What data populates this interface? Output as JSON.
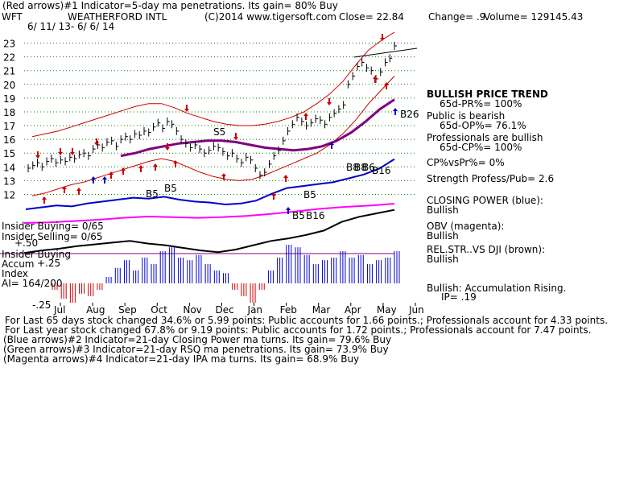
{
  "header": {
    "arrow_line": "(Red arrows)#1 Indicator=5-day ma penetrations. Its gain= 80% Buy",
    "ticker": "WFT",
    "company": "WEATHERFORD INTL",
    "copyright": "(C)2014 www.tigersoft.com",
    "close": "Close=  22.84",
    "change": "Change= .9",
    "volume": "Volume= 129145.43",
    "date_range": "6/ 11/ 13- 6/ 6/ 14"
  },
  "side_panel": {
    "trend_title": "BULLISH PRICE TREND",
    "pr": "65d-PR%= 100%",
    "public_label": "Public is bearish",
    "op": "65d-OP%= 76.1%",
    "pros_label": "Professionals are bullish",
    "cp": "65d-CP%= 100%",
    "cp_vs_pr": "CP%vsPr%=  0%",
    "strength": "Strength Profess/Pub= 2.6",
    "closing_power_label": "CLOSING POWER (blue):",
    "closing_power_value": "Bullish",
    "obv_label": "OBV (magenta):",
    "obv_value": "Bullish",
    "relstr_label": "REL.STR..VS DJI (brown):",
    "relstr_value": "Bullish",
    "accum_note": "Bullish: Accumulation Rising.",
    "ip": "IP=  .19"
  },
  "left_labels": {
    "insider_buying_1": "Insider Buying= 0/65",
    "insider_selling": "Insider Selling= 0/65",
    "insider_buying_2": "Insider Buying",
    "minus_50": "+.50",
    "accum": "Accum",
    "plus_25": "+.25",
    "index": "Index",
    "ai": "AI= 164/200",
    "minus_25": "-.25"
  },
  "chart_annotations": [
    {
      "text": "S5"
    },
    {
      "text": "B5"
    },
    {
      "text": "B5"
    },
    {
      "text": "B5"
    },
    {
      "text": "B5"
    },
    {
      "text": "B16"
    },
    {
      "text": "B26"
    },
    {
      "text": "B8"
    },
    {
      "text": "B8"
    },
    {
      "text": "B6"
    },
    {
      "text": "B16"
    }
  ],
  "footer": {
    "line1": "For Last 65 days stock changed  34.6% or  5.99 points:  Public accounts for  1.66 points.;  Professionals account for  4.33 points.",
    "line2": "For Last year stock changed  67.8% or  9.19 points:  Public accounts for  1.72 points.;  Professionals account for  7.47 points.",
    "line3": "(Blue arrows)#2 Indicator=21-day Closing Power ma turns. Its gain= 79.6% Buy",
    "line4": "(Green arrows)#3 Indicator=21-day RSQ ma penetrations. Its gain= 73.9% Buy",
    "line5": "(Magenta arrows)#4 Indicator=21-day IPA ma turns. Its gain= 68.9% Buy"
  },
  "chart_data": {
    "type": "line",
    "title": "WEATHERFORD INTL",
    "ylim": [
      11.5,
      23.5
    ],
    "y_ticks": [
      "23",
      "22",
      "21",
      "20",
      "19",
      "18",
      "17",
      "16",
      "15",
      "14",
      "13",
      "12"
    ],
    "x_ticks": [
      "Jul",
      "Aug",
      "Sep",
      "Oct",
      "Nov",
      "Dec",
      "Jan",
      "Feb",
      "Mar",
      "Apr",
      "May",
      "Jun"
    ],
    "price_series": [
      13.9,
      14.1,
      14.3,
      14.0,
      14.4,
      14.6,
      14.3,
      14.5,
      14.4,
      14.7,
      14.6,
      14.9,
      15.0,
      14.8,
      15.3,
      15.6,
      15.4,
      15.8,
      15.9,
      15.5,
      16.0,
      16.2,
      16.0,
      16.4,
      16.3,
      16.6,
      16.5,
      16.9,
      17.2,
      16.8,
      17.3,
      17.1,
      16.6,
      16.0,
      15.7,
      15.4,
      15.6,
      15.3,
      15.0,
      15.2,
      15.5,
      15.4,
      15.1,
      14.8,
      15.0,
      14.6,
      14.3,
      14.7,
      14.5,
      13.9,
      13.4,
      13.6,
      14.2,
      14.8,
      15.2,
      15.9,
      16.6,
      17.1,
      17.6,
      17.3,
      17.0,
      17.2,
      17.5,
      17.4,
      17.1,
      17.6,
      17.9,
      18.2,
      18.5,
      20.0,
      20.6,
      21.3,
      21.6,
      21.2,
      21.0,
      20.4,
      20.9,
      21.6,
      21.9,
      22.8
    ],
    "ma_red_upper": [
      16.2,
      16.4,
      16.6,
      16.9,
      17.2,
      17.5,
      17.8,
      18.1,
      18.4,
      18.6,
      18.6,
      18.3,
      17.9,
      17.6,
      17.3,
      17.1,
      17.0,
      17.0,
      17.1,
      17.3,
      17.6,
      18.0,
      18.6,
      19.3,
      20.2,
      21.4,
      22.5,
      23.2,
      23.8
    ],
    "ma_red_lower": [
      11.9,
      12.1,
      12.4,
      12.7,
      12.9,
      13.2,
      13.5,
      13.8,
      14.1,
      14.4,
      14.6,
      14.4,
      14.0,
      13.6,
      13.3,
      13.1,
      13.0,
      13.1,
      13.4,
      13.8,
      14.2,
      14.6,
      15.0,
      15.6,
      16.4,
      17.4,
      18.6,
      19.6,
      20.6
    ],
    "ma_purple": [
      14.8,
      15.0,
      15.3,
      15.5,
      15.7,
      15.8,
      15.9,
      15.9,
      15.8,
      15.6,
      15.4,
      15.3,
      15.2,
      15.3,
      15.5,
      15.9,
      16.5,
      17.3,
      18.2,
      18.9
    ],
    "closing_power": [
      1.0,
      1.2,
      1.4,
      1.3,
      1.6,
      1.8,
      2.0,
      2.2,
      2.1,
      2.3,
      2.0,
      1.8,
      1.7,
      1.5,
      1.6,
      1.9,
      2.6,
      3.2,
      3.4,
      3.6,
      3.8,
      4.2,
      4.6,
      5.2,
      6.2
    ],
    "obv": [
      1.0,
      1.1,
      1.3,
      1.5,
      1.8,
      2.0,
      1.9,
      1.8,
      1.9,
      2.1,
      2.4,
      2.8,
      3.2,
      3.5,
      3.7,
      4.0
    ],
    "rel_str": [
      1.0,
      1.3,
      1.5,
      1.8,
      2.0,
      2.2,
      2.4,
      2.1,
      1.9,
      1.6,
      1.3,
      1.1,
      1.4,
      1.9,
      2.4,
      2.7,
      3.1,
      3.6,
      4.6,
      5.2,
      5.6,
      6.0
    ],
    "accumulation_index": [
      -0.05,
      -0.12,
      -0.15,
      -0.08,
      -0.1,
      -0.05,
      0.05,
      0.12,
      0.18,
      0.1,
      0.2,
      0.15,
      0.25,
      0.28,
      0.2,
      0.18,
      0.22,
      0.15,
      0.1,
      0.08,
      -0.05,
      -0.1,
      -0.15,
      -0.05,
      0.1,
      0.2,
      0.3,
      0.28,
      0.22,
      0.15,
      0.18,
      0.2,
      0.25,
      0.2,
      0.22,
      0.15,
      0.18,
      0.2,
      0.25
    ],
    "colors": {
      "price": "#000000",
      "bands": "#cc0000",
      "ma": "#800080",
      "closing_power": "#0000cc",
      "obv": "#ff00ff",
      "rel_str": "#000000",
      "accum_pos": "#0000cc",
      "accum_neg": "#cc0000",
      "grid": "#008000"
    },
    "grid": true
  }
}
